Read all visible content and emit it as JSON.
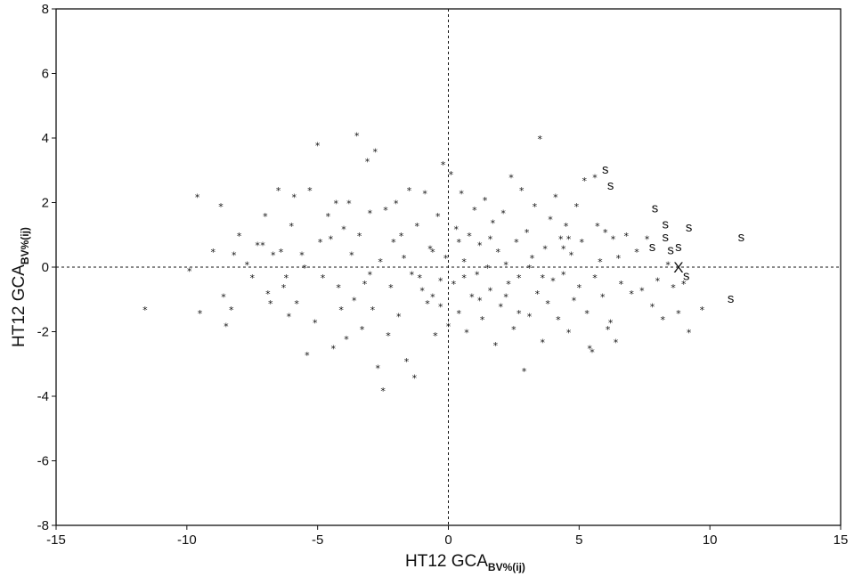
{
  "chart_data": {
    "type": "scatter",
    "xlabel": "HT12 GCA",
    "xlabel_sub": "BV%(ij)",
    "ylabel": "HT12 GCA",
    "ylabel_sub": "BV%(ij)",
    "xlim": [
      -15,
      15
    ],
    "ylim": [
      -8,
      8
    ],
    "xticks": [
      "-15",
      "-10",
      "-5",
      "0",
      "5",
      "10",
      "15"
    ],
    "yticks": [
      "-8",
      "-6",
      "-4",
      "-2",
      "0",
      "2",
      "4",
      "6",
      "8"
    ],
    "reference_lines": {
      "x": 0,
      "y": 0
    },
    "grid": false,
    "series": [
      {
        "marker": "*",
        "points": [
          [
            -11.6,
            -1.3
          ],
          [
            -9.9,
            -0.1
          ],
          [
            -9.6,
            2.2
          ],
          [
            -9.5,
            -1.4
          ],
          [
            -9.0,
            0.5
          ],
          [
            -8.7,
            1.9
          ],
          [
            -8.6,
            -0.9
          ],
          [
            -8.5,
            -1.8
          ],
          [
            -8.3,
            -1.3
          ],
          [
            -8.2,
            0.4
          ],
          [
            -8.0,
            1.0
          ],
          [
            -7.7,
            0.1
          ],
          [
            -7.3,
            0.7
          ],
          [
            -7.1,
            0.7
          ],
          [
            -7.0,
            1.6
          ],
          [
            -6.9,
            -0.8
          ],
          [
            -6.8,
            -1.1
          ],
          [
            -6.7,
            0.4
          ],
          [
            -6.5,
            2.4
          ],
          [
            -6.4,
            0.5
          ],
          [
            -6.3,
            -0.6
          ],
          [
            -6.1,
            -1.5
          ],
          [
            -5.9,
            2.2
          ],
          [
            -5.8,
            -1.1
          ],
          [
            -5.6,
            0.4
          ],
          [
            -5.4,
            -2.7
          ],
          [
            -5.3,
            2.4
          ],
          [
            -5.1,
            -1.7
          ],
          [
            -5.0,
            3.8
          ],
          [
            -4.9,
            0.8
          ],
          [
            -4.8,
            -0.3
          ],
          [
            -4.6,
            1.6
          ],
          [
            -4.4,
            -2.5
          ],
          [
            -4.3,
            2.0
          ],
          [
            -4.2,
            -0.6
          ],
          [
            -4.0,
            1.2
          ],
          [
            -3.9,
            -2.2
          ],
          [
            -3.8,
            2.0
          ],
          [
            -3.7,
            0.4
          ],
          [
            -3.6,
            -1.0
          ],
          [
            -3.5,
            4.1
          ],
          [
            -3.4,
            1.0
          ],
          [
            -3.3,
            -1.9
          ],
          [
            -3.1,
            3.3
          ],
          [
            -3.0,
            1.7
          ],
          [
            -2.9,
            -1.3
          ],
          [
            -2.8,
            3.6
          ],
          [
            -2.7,
            -3.1
          ],
          [
            -2.6,
            0.2
          ],
          [
            -2.5,
            -3.8
          ],
          [
            -2.4,
            1.8
          ],
          [
            -2.3,
            -2.1
          ],
          [
            -2.2,
            -0.6
          ],
          [
            -2.0,
            2.0
          ],
          [
            -1.9,
            -1.5
          ],
          [
            -1.8,
            1.0
          ],
          [
            -1.6,
            -2.9
          ],
          [
            -1.5,
            2.4
          ],
          [
            -1.4,
            -0.2
          ],
          [
            -1.3,
            -3.4
          ],
          [
            -1.2,
            1.3
          ],
          [
            -1.0,
            -0.7
          ],
          [
            -0.9,
            2.3
          ],
          [
            -0.8,
            -1.1
          ],
          [
            -0.7,
            0.6
          ],
          [
            -0.6,
            -0.9
          ],
          [
            -0.5,
            -2.1
          ],
          [
            -0.4,
            1.6
          ],
          [
            -0.3,
            -0.4
          ],
          [
            -0.2,
            3.2
          ],
          [
            -0.1,
            0.3
          ],
          [
            0.0,
            -1.8
          ],
          [
            0.1,
            2.9
          ],
          [
            0.2,
            -0.5
          ],
          [
            0.3,
            1.2
          ],
          [
            0.4,
            -1.4
          ],
          [
            0.5,
            2.3
          ],
          [
            0.6,
            0.2
          ],
          [
            0.7,
            -2.0
          ],
          [
            0.8,
            1.0
          ],
          [
            0.9,
            -0.9
          ],
          [
            1.0,
            1.8
          ],
          [
            1.1,
            -0.2
          ],
          [
            1.2,
            0.7
          ],
          [
            1.3,
            -1.6
          ],
          [
            1.4,
            2.1
          ],
          [
            1.5,
            0.0
          ],
          [
            1.6,
            -0.7
          ],
          [
            1.7,
            1.4
          ],
          [
            1.8,
            -2.4
          ],
          [
            1.9,
            0.5
          ],
          [
            2.0,
            -1.2
          ],
          [
            2.1,
            1.7
          ],
          [
            2.2,
            0.1
          ],
          [
            2.3,
            -0.5
          ],
          [
            2.4,
            2.8
          ],
          [
            2.5,
            -1.9
          ],
          [
            2.6,
            0.8
          ],
          [
            2.7,
            -0.3
          ],
          [
            2.8,
            2.4
          ],
          [
            2.9,
            -3.2
          ],
          [
            3.0,
            1.1
          ],
          [
            3.1,
            -1.5
          ],
          [
            3.2,
            0.3
          ],
          [
            3.3,
            1.9
          ],
          [
            3.4,
            -0.8
          ],
          [
            3.5,
            4.0
          ],
          [
            3.6,
            -2.3
          ],
          [
            3.7,
            0.6
          ],
          [
            3.8,
            -1.1
          ],
          [
            3.9,
            1.5
          ],
          [
            4.0,
            -0.4
          ],
          [
            4.1,
            2.2
          ],
          [
            4.2,
            -1.6
          ],
          [
            4.3,
            0.9
          ],
          [
            4.4,
            -0.2
          ],
          [
            4.5,
            1.3
          ],
          [
            4.6,
            -2.0
          ],
          [
            4.7,
            0.4
          ],
          [
            4.8,
            -1.0
          ],
          [
            4.9,
            1.9
          ],
          [
            5.0,
            -0.6
          ],
          [
            5.1,
            0.8
          ],
          [
            5.2,
            2.7
          ],
          [
            5.3,
            -1.4
          ],
          [
            5.4,
            -2.5
          ],
          [
            5.5,
            -2.6
          ],
          [
            5.6,
            2.8
          ],
          [
            5.7,
            1.3
          ],
          [
            5.8,
            0.2
          ],
          [
            5.9,
            -0.9
          ],
          [
            6.0,
            1.1
          ],
          [
            6.1,
            -1.9
          ],
          [
            6.2,
            -1.7
          ],
          [
            6.3,
            0.9
          ],
          [
            6.4,
            -2.3
          ],
          [
            6.5,
            0.3
          ],
          [
            6.6,
            -0.5
          ],
          [
            6.8,
            1.0
          ],
          [
            7.0,
            -0.8
          ],
          [
            7.2,
            0.5
          ],
          [
            7.4,
            -0.7
          ],
          [
            7.6,
            0.9
          ],
          [
            7.8,
            -1.2
          ],
          [
            8.0,
            -0.4
          ],
          [
            8.2,
            -1.6
          ],
          [
            8.4,
            0.1
          ],
          [
            8.6,
            -0.6
          ],
          [
            8.8,
            -1.4
          ],
          [
            9.0,
            -0.5
          ],
          [
            9.2,
            -2.0
          ],
          [
            9.7,
            -1.3
          ],
          [
            -6.0,
            1.3
          ],
          [
            -5.5,
            0.0
          ],
          [
            -4.5,
            0.9
          ],
          [
            -3.2,
            -0.5
          ],
          [
            -2.1,
            0.8
          ],
          [
            -1.1,
            -0.3
          ],
          [
            -0.6,
            0.5
          ],
          [
            0.4,
            0.8
          ],
          [
            1.2,
            -1.0
          ],
          [
            2.2,
            -0.9
          ],
          [
            3.1,
            0.0
          ],
          [
            4.4,
            0.6
          ],
          [
            -7.5,
            -0.3
          ],
          [
            -6.2,
            -0.3
          ],
          [
            -4.1,
            -1.3
          ],
          [
            -3.0,
            -0.2
          ],
          [
            -1.7,
            0.3
          ],
          [
            -0.3,
            -1.2
          ],
          [
            0.6,
            -0.3
          ],
          [
            1.6,
            0.9
          ],
          [
            2.7,
            -1.4
          ],
          [
            3.6,
            -0.3
          ],
          [
            4.6,
            0.9
          ],
          [
            5.6,
            -0.3
          ]
        ]
      },
      {
        "marker": "s",
        "points": [
          [
            6.0,
            2.9
          ],
          [
            6.2,
            2.4
          ],
          [
            7.9,
            1.7
          ],
          [
            8.3,
            1.2
          ],
          [
            9.2,
            1.1
          ],
          [
            11.2,
            0.8
          ],
          [
            8.3,
            0.8
          ],
          [
            7.8,
            0.5
          ],
          [
            8.5,
            0.4
          ],
          [
            8.8,
            0.5
          ],
          [
            9.1,
            -0.4
          ],
          [
            10.8,
            -1.1
          ]
        ]
      },
      {
        "marker": "X",
        "points": [
          [
            8.8,
            0.0
          ]
        ]
      }
    ]
  }
}
